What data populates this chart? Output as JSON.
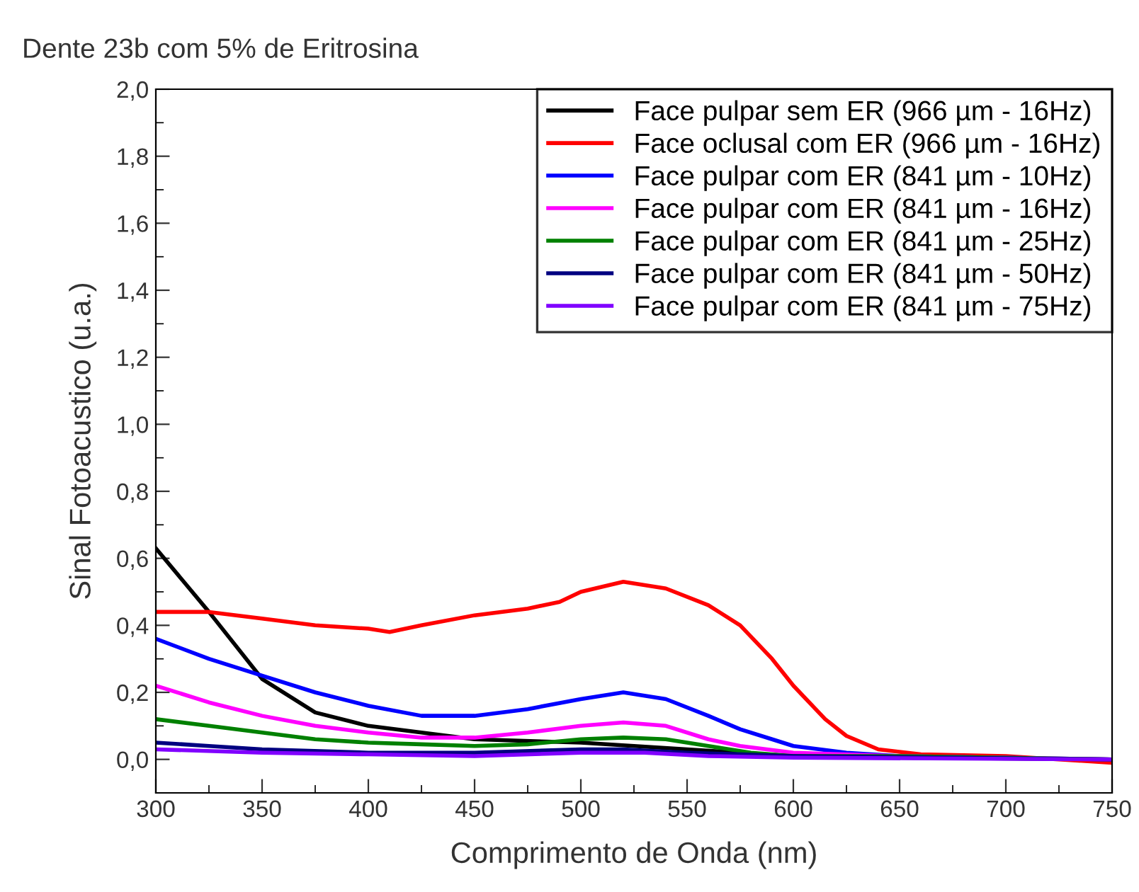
{
  "chart_data": {
    "type": "line",
    "title": "Dente 23b com 5% de Eritrosina",
    "xlabel": "Comprimento de Onda (nm)",
    "ylabel": "Sinal Fotoacustico (u.a.)",
    "xlim": [
      300,
      750
    ],
    "xticks": [
      300,
      350,
      400,
      450,
      500,
      550,
      600,
      650,
      700,
      750
    ],
    "ylim": [
      -0.1,
      2.0
    ],
    "yticks": [
      {
        "value": 0.0,
        "label": "0,0"
      },
      {
        "value": 0.2,
        "label": "0,2"
      },
      {
        "value": 0.4,
        "label": "0,4"
      },
      {
        "value": 0.6,
        "label": "0,6"
      },
      {
        "value": 0.8,
        "label": "0,8"
      },
      {
        "value": 1.0,
        "label": "1,0"
      },
      {
        "value": 1.2,
        "label": "1,2"
      },
      {
        "value": 1.4,
        "label": "1,4"
      },
      {
        "value": 1.6,
        "label": "1,6"
      },
      {
        "value": 1.8,
        "label": "1,8"
      },
      {
        "value": 2.0,
        "label": "2,0"
      }
    ],
    "grid": false,
    "legend": "top right",
    "marker": "none",
    "line_style": "solid",
    "series": [
      {
        "name": "Face pulpar sem ER (966 µm - 16Hz)",
        "color": "#000000",
        "x": [
          300,
          325,
          350,
          375,
          400,
          450,
          500,
          550,
          600,
          650,
          750
        ],
        "values": [
          0.63,
          0.44,
          0.24,
          0.14,
          0.1,
          0.06,
          0.05,
          0.03,
          0.01,
          0.005,
          0.0
        ]
      },
      {
        "name": "Face oclusal com ER (966 µm - 16Hz)",
        "color": "#ff0000",
        "x": [
          300,
          325,
          350,
          375,
          400,
          410,
          425,
          450,
          475,
          490,
          500,
          520,
          540,
          560,
          575,
          590,
          600,
          615,
          625,
          640,
          660,
          700,
          725,
          750
        ],
        "values": [
          0.44,
          0.44,
          0.42,
          0.4,
          0.39,
          0.38,
          0.4,
          0.43,
          0.45,
          0.47,
          0.5,
          0.53,
          0.51,
          0.46,
          0.4,
          0.3,
          0.22,
          0.12,
          0.07,
          0.03,
          0.015,
          0.01,
          0.0,
          -0.01
        ]
      },
      {
        "name": "Face pulpar com ER (841 µm - 10Hz)",
        "color": "#0000ff",
        "x": [
          300,
          325,
          350,
          375,
          400,
          425,
          450,
          475,
          500,
          520,
          540,
          560,
          575,
          590,
          600,
          625,
          650,
          700,
          750
        ],
        "values": [
          0.36,
          0.3,
          0.25,
          0.2,
          0.16,
          0.13,
          0.13,
          0.15,
          0.18,
          0.2,
          0.18,
          0.13,
          0.09,
          0.06,
          0.04,
          0.02,
          0.01,
          0.005,
          0.0
        ]
      },
      {
        "name": "Face pulpar com ER (841 µm - 16Hz)",
        "color": "#ff00ff",
        "x": [
          300,
          325,
          350,
          375,
          400,
          425,
          450,
          475,
          500,
          520,
          540,
          560,
          575,
          600,
          650,
          750
        ],
        "values": [
          0.22,
          0.17,
          0.13,
          0.1,
          0.08,
          0.065,
          0.065,
          0.08,
          0.1,
          0.11,
          0.1,
          0.06,
          0.04,
          0.02,
          0.01,
          0.0
        ]
      },
      {
        "name": "Face pulpar com ER (841 µm - 25Hz)",
        "color": "#008000",
        "x": [
          300,
          325,
          350,
          375,
          400,
          425,
          450,
          475,
          500,
          520,
          540,
          560,
          580,
          600,
          650,
          750
        ],
        "values": [
          0.12,
          0.1,
          0.08,
          0.06,
          0.05,
          0.045,
          0.04,
          0.045,
          0.06,
          0.065,
          0.06,
          0.04,
          0.02,
          0.01,
          0.01,
          0.0
        ]
      },
      {
        "name": "Face pulpar com ER (841 µm - 50Hz)",
        "color": "#000080",
        "x": [
          300,
          325,
          350,
          400,
          450,
          500,
          520,
          550,
          600,
          750
        ],
        "values": [
          0.05,
          0.04,
          0.03,
          0.02,
          0.02,
          0.03,
          0.03,
          0.02,
          0.01,
          0.0
        ]
      },
      {
        "name": "Face pulpar com ER (841 µm - 75Hz)",
        "color": "#8000ff",
        "x": [
          300,
          350,
          400,
          450,
          500,
          530,
          560,
          600,
          750
        ],
        "values": [
          0.03,
          0.02,
          0.015,
          0.01,
          0.02,
          0.02,
          0.01,
          0.005,
          0.0
        ]
      }
    ]
  }
}
